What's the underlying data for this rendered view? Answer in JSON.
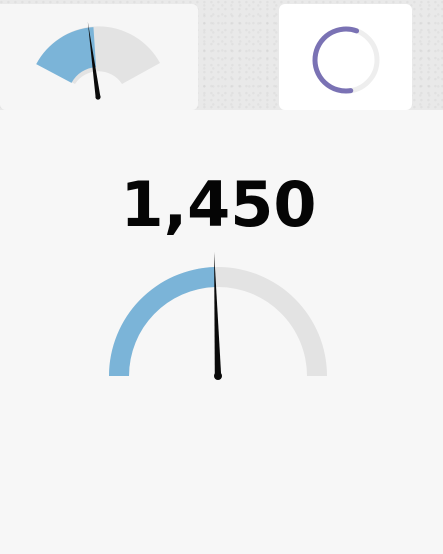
{
  "colors": {
    "gauge_fill": "#7bb4d8",
    "gauge_track": "#e3e3e3",
    "needle": "#0a0a0a",
    "spinner": "#7a72b4",
    "spinner_track": "#eeeeee",
    "value_text": "#050505"
  },
  "thumbnails": [
    {
      "kind": "gauge",
      "icon": "gauge-icon",
      "level": 0.47
    },
    {
      "kind": "progress-ring",
      "icon": "progress-ring-icon",
      "level": 0.58
    }
  ],
  "main_gauge": {
    "value_label": "1,450",
    "level": 0.49
  }
}
